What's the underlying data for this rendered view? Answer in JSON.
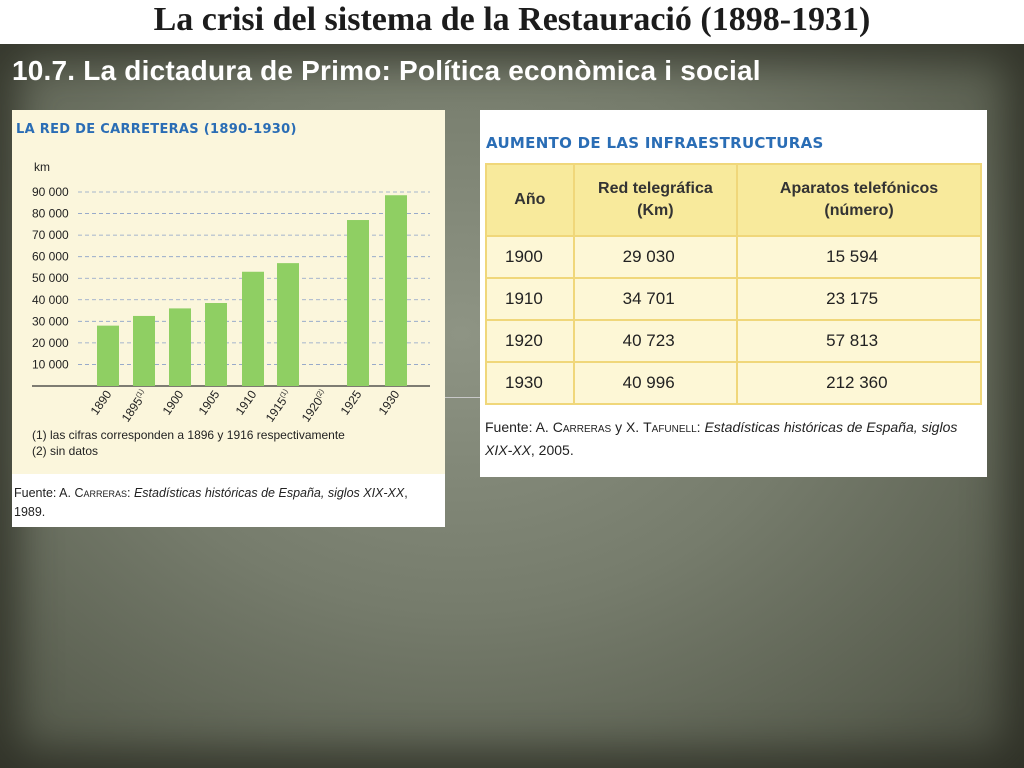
{
  "header": {
    "title": "La crisi del sistema de la Restauració (1898-1931)",
    "subtitle": "10.7. La dictadura de Primo: Política econòmica i social"
  },
  "chart_data": {
    "type": "bar",
    "title": "LA RED DE CARRETERAS (1890-1930)",
    "ylabel": "km",
    "categories": [
      "1890",
      "1895",
      "1900",
      "1905",
      "1910",
      "1915",
      "1920",
      "1925",
      "1930"
    ],
    "category_marks": [
      "",
      "(1)",
      "",
      "",
      "",
      "(1)",
      "(2)",
      "",
      ""
    ],
    "values": [
      28000,
      32500,
      36000,
      38500,
      53000,
      57000,
      null,
      77000,
      88500
    ],
    "yticks": [
      {
        "value": 10000,
        "label": "10 000"
      },
      {
        "value": 20000,
        "label": "20 000"
      },
      {
        "value": 30000,
        "label": "30 000"
      },
      {
        "value": 40000,
        "label": "40 000"
      },
      {
        "value": 50000,
        "label": "50 000"
      },
      {
        "value": 60000,
        "label": "60 000"
      },
      {
        "value": 70000,
        "label": "70 000"
      },
      {
        "value": 80000,
        "label": "80 000"
      },
      {
        "value": 90000,
        "label": "90 000"
      }
    ],
    "ylim": [
      0,
      90000
    ],
    "grid": true,
    "bar_color": "#8fcf63",
    "footnotes": [
      "(1) las cifras corresponden a 1896 y 1916 respectivamente",
      "(2) sin datos"
    ],
    "source_prefix": "Fuente: A. ",
    "source_author": "Carreras",
    "source_sep": ": ",
    "source_work": "Estadísticas históricas de España, siglos XIX-XX",
    "source_suffix": ", 1989."
  },
  "table": {
    "title": "AUMENTO DE LAS INFRAESTRUCTURAS",
    "columns": [
      "Año",
      "Red telegráfica (Km)",
      "Aparatos telefónicos (número)"
    ],
    "rows": [
      [
        "1900",
        "29 030",
        "15 594"
      ],
      [
        "1910",
        "34 701",
        "23 175"
      ],
      [
        "1920",
        "40 723",
        "57 813"
      ],
      [
        "1930",
        "40 996",
        "212 360"
      ]
    ],
    "source_prefix": "Fuente: A. ",
    "source_author1": "Carreras",
    "source_mid": " y X. ",
    "source_author2": "Tafunell",
    "source_sep": ": ",
    "source_work": "Estadísticas históricas de España, siglos XIX-XX",
    "source_suffix": ", 2005."
  },
  "colors": {
    "title_blue": "#2a6db5",
    "table_header": "#f8ea9c",
    "table_border": "#f0d77a",
    "chart_bg": "#fbf6dc"
  }
}
